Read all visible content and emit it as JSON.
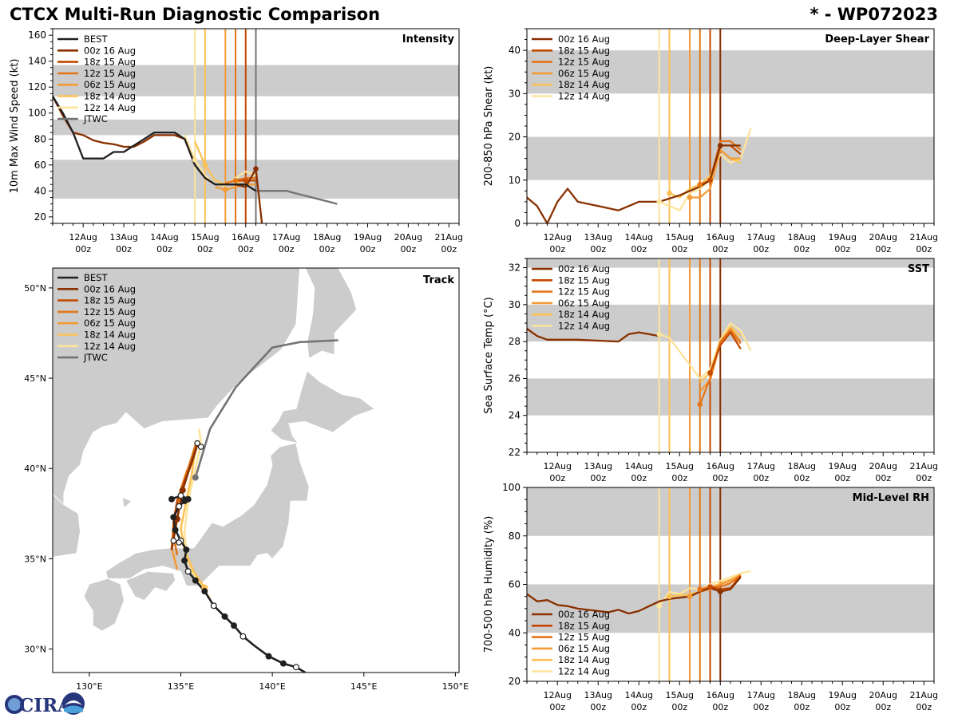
{
  "header": {
    "title": "CTCX Multi-Run Diagnostic Comparison",
    "storm": "* - WP072023"
  },
  "logo": {
    "text": "CIRA"
  },
  "colors": {
    "BEST": "#202020",
    "00z 16 Aug": "#8a3000",
    "18z 15 Aug": "#c44a00",
    "12z 15 Aug": "#e4761a",
    "06z 15 Aug": "#f49a34",
    "18z 14 Aug": "#fbc154",
    "12z 14 Aug": "#fde49c",
    "JTWC": "#737373",
    "band": "#cccccc"
  },
  "time_axis": {
    "ticks": [
      1,
      2,
      3,
      4,
      5,
      6,
      7,
      8,
      9,
      10
    ],
    "labels": [
      [
        "12Aug",
        "00z"
      ],
      [
        "13Aug",
        "00z"
      ],
      [
        "14Aug",
        "00z"
      ],
      [
        "15Aug",
        "00z"
      ],
      [
        "16Aug",
        "00z"
      ],
      [
        "17Aug",
        "00z"
      ],
      [
        "18Aug",
        "00z"
      ],
      [
        "19Aug",
        "00z"
      ],
      [
        "20Aug",
        "00z"
      ],
      [
        "21Aug",
        "00z"
      ]
    ]
  },
  "init_times": [
    {
      "name": "12z 14 Aug",
      "t": 3.5
    },
    {
      "name": "18z 14 Aug",
      "t": 3.75
    },
    {
      "name": "06z 15 Aug",
      "t": 4.25
    },
    {
      "name": "12z 15 Aug",
      "t": 4.5
    },
    {
      "name": "18z 15 Aug",
      "t": 4.75
    },
    {
      "name": "00z 16 Aug",
      "t": 5.0
    }
  ],
  "chart_data": [
    {
      "id": "intensity",
      "type": "line",
      "title": "Intensity",
      "ylabel": "10m Max Wind Speed (kt)",
      "xlim": [
        0.25,
        10.25
      ],
      "ylim": [
        15,
        165
      ],
      "yticks": [
        20,
        40,
        60,
        80,
        100,
        120,
        140,
        160
      ],
      "bands": [
        [
          34,
          64
        ],
        [
          83,
          95
        ],
        [
          113,
          137
        ]
      ],
      "legend": [
        "BEST",
        "00z 16 Aug",
        "18z 15 Aug",
        "12z 15 Aug",
        "06z 15 Aug",
        "18z 14 Aug",
        "12z 14 Aug",
        "JTWC"
      ],
      "series": [
        {
          "name": "BEST",
          "x": [
            0.25,
            0.5,
            0.75,
            1.0,
            1.25,
            1.5,
            1.75,
            2.0,
            2.25,
            2.5,
            2.75,
            3.0,
            3.25,
            3.5,
            3.75,
            4.0,
            4.25,
            4.5,
            4.75,
            5.0,
            5.25
          ],
          "y": [
            113,
            100,
            85,
            65,
            65,
            65,
            70,
            70,
            75,
            80,
            85,
            85,
            85,
            80,
            60,
            50,
            45,
            45,
            45,
            45,
            40
          ]
        },
        {
          "name": "00z 16 Aug",
          "x": [
            0.25,
            0.5,
            0.75,
            1.0,
            1.25,
            1.5,
            1.75,
            2.0,
            2.25,
            2.5,
            2.75,
            3.0,
            3.25,
            3.5,
            3.75,
            4.0,
            4.25,
            4.5,
            4.75,
            5.0,
            5.25,
            5.4
          ],
          "y": [
            113,
            98,
            85,
            83,
            79,
            77,
            76,
            74,
            74,
            78,
            83,
            83,
            83,
            80,
            60,
            50,
            45,
            45,
            45,
            43,
            57,
            15
          ]
        },
        {
          "name": "18z 15 Aug",
          "x": [
            4.75,
            5.0,
            5.25
          ],
          "y": [
            48,
            48,
            48
          ]
        },
        {
          "name": "12z 15 Aug",
          "x": [
            4.5,
            4.75,
            5.0,
            5.25
          ],
          "y": [
            46,
            48,
            50,
            50
          ]
        },
        {
          "name": "06z 15 Aug",
          "x": [
            4.25,
            4.5,
            4.75,
            5.0,
            5.25
          ],
          "y": [
            43,
            41,
            43,
            45,
            45
          ]
        },
        {
          "name": "18z 14 Aug",
          "x": [
            3.75,
            4.0,
            4.25,
            4.5,
            4.75,
            5.0,
            5.25
          ],
          "y": [
            78,
            60,
            48,
            45,
            45,
            50,
            50
          ]
        },
        {
          "name": "12z 14 Aug",
          "x": [
            3.5,
            3.75,
            4.0,
            4.25,
            4.5,
            4.75,
            5.0,
            5.25
          ],
          "y": [
            83,
            64,
            52,
            45,
            44,
            50,
            55,
            52
          ]
        },
        {
          "name": "JTWC",
          "x": [
            5.0,
            5.25,
            5.5,
            5.75,
            6.0,
            6.25,
            6.5,
            6.75,
            7.0,
            7.25
          ],
          "y": [
            45,
            40,
            40,
            40,
            40,
            38,
            36,
            34,
            32,
            30
          ]
        }
      ]
    },
    {
      "id": "shear",
      "type": "line",
      "title": "Deep-Layer Shear",
      "ylabel": "200-850 hPa Shear (kt)",
      "xlim": [
        0.25,
        10.25
      ],
      "ylim": [
        0,
        45
      ],
      "yticks": [
        0,
        10,
        20,
        30,
        40
      ],
      "bands": [
        [
          10,
          20
        ],
        [
          30,
          40
        ]
      ],
      "legend": [
        "00z 16 Aug",
        "18z 15 Aug",
        "12z 15 Aug",
        "06z 15 Aug",
        "18z 14 Aug",
        "12z 14 Aug"
      ],
      "series": [
        {
          "name": "00z 16 Aug",
          "x": [
            0.25,
            0.5,
            0.75,
            1.0,
            1.25,
            1.5,
            2.0,
            2.5,
            3.0,
            3.25,
            3.5,
            4.0,
            4.25,
            4.5,
            4.75,
            5.0,
            5.25,
            5.5
          ],
          "y": [
            6,
            4,
            0,
            5,
            8,
            5,
            4,
            3,
            5,
            5,
            5,
            6.5,
            7.5,
            8.5,
            10,
            18,
            18,
            18
          ]
        },
        {
          "name": "18z 15 Aug",
          "x": [
            4.75,
            5.0,
            5.25,
            5.5
          ],
          "y": [
            10,
            18,
            18,
            16
          ]
        },
        {
          "name": "12z 15 Aug",
          "x": [
            4.5,
            4.75,
            5.0,
            5.25,
            5.5
          ],
          "y": [
            9,
            10,
            19,
            19,
            17
          ]
        },
        {
          "name": "06z 15 Aug",
          "x": [
            4.25,
            4.5,
            4.75,
            5.0,
            5.25,
            5.5
          ],
          "y": [
            6,
            6,
            8,
            17,
            15,
            15
          ]
        },
        {
          "name": "18z 14 Aug",
          "x": [
            3.75,
            4.0,
            4.25,
            4.5,
            4.75,
            5.0,
            5.25,
            5.5
          ],
          "y": [
            7,
            6,
            8,
            9,
            11,
            17,
            15,
            14
          ]
        },
        {
          "name": "12z 14 Aug",
          "x": [
            3.5,
            3.75,
            4.0,
            4.25,
            4.5,
            4.75,
            5.0,
            5.25,
            5.5,
            5.75
          ],
          "y": [
            5,
            4,
            3,
            7,
            8,
            10,
            16,
            14,
            15,
            22
          ]
        }
      ]
    },
    {
      "id": "sst",
      "type": "line",
      "title": "SST",
      "ylabel": "Sea Surface Temp (°C)",
      "xlim": [
        0.25,
        10.25
      ],
      "ylim": [
        22,
        32.5
      ],
      "yticks": [
        22,
        24,
        26,
        28,
        30,
        32
      ],
      "bands": [
        [
          24,
          26
        ],
        [
          28,
          30
        ],
        [
          32,
          32.5
        ]
      ],
      "legend": [
        "00z 16 Aug",
        "18z 15 Aug",
        "12z 15 Aug",
        "06z 15 Aug",
        "18z 14 Aug",
        "12z 14 Aug"
      ],
      "series": [
        {
          "name": "00z 16 Aug",
          "x": [
            0.25,
            0.5,
            0.75,
            1.0,
            1.5,
            2.0,
            2.5,
            2.75,
            3.0,
            3.25,
            3.5
          ],
          "y": [
            28.7,
            28.3,
            28.1,
            28.1,
            28.1,
            28.05,
            28.0,
            28.4,
            28.5,
            28.4,
            28.3
          ]
        },
        {
          "name": "18z 15 Aug",
          "x": [
            4.75,
            5.0,
            5.25,
            5.5
          ],
          "y": [
            26.3,
            27.8,
            28.5,
            27.6
          ]
        },
        {
          "name": "12z 15 Aug",
          "x": [
            4.5,
            4.75,
            5.0,
            5.25,
            5.5
          ],
          "y": [
            24.6,
            26.0,
            28.0,
            28.6,
            27.9
          ]
        },
        {
          "name": "06z 15 Aug",
          "x": [
            4.5,
            4.75,
            5.0,
            5.25,
            5.5
          ],
          "y": [
            25.3,
            25.9,
            27.9,
            28.7,
            28.0
          ]
        },
        {
          "name": "18z 14 Aug",
          "x": [
            4.5,
            4.75,
            5.0,
            5.25,
            5.5
          ],
          "y": [
            25.8,
            26.3,
            28.0,
            28.8,
            28.3
          ]
        },
        {
          "name": "12z 14 Aug",
          "x": [
            3.5,
            3.75,
            4.5,
            4.75,
            5.0,
            5.25,
            5.5,
            5.75
          ],
          "y": [
            28.4,
            28.2,
            26.0,
            26.5,
            28.1,
            29.0,
            28.6,
            27.5
          ]
        }
      ]
    },
    {
      "id": "rh",
      "type": "line",
      "title": "Mid-Level RH",
      "ylabel": "700-500 hPa Humidity (%)",
      "xlim": [
        0.25,
        10.25
      ],
      "ylim": [
        20,
        100
      ],
      "yticks": [
        20,
        40,
        60,
        80,
        100
      ],
      "bands": [
        [
          40,
          60
        ],
        [
          80,
          100
        ]
      ],
      "legend": [
        "00z 16 Aug",
        "18z 15 Aug",
        "12z 15 Aug",
        "06z 15 Aug",
        "18z 14 Aug",
        "12z 14 Aug"
      ],
      "series": [
        {
          "name": "00z 16 Aug",
          "x": [
            0.25,
            0.5,
            0.75,
            1.0,
            1.25,
            1.5,
            1.75,
            2.0,
            2.25,
            2.5,
            2.75,
            3.0,
            3.25,
            3.5,
            3.75,
            4.0,
            4.25,
            4.5,
            4.75,
            5.0,
            5.25,
            5.5
          ],
          "y": [
            56,
            53,
            53.5,
            51.5,
            51,
            50,
            49.5,
            49,
            48.5,
            49.5,
            48,
            49,
            51,
            53,
            54,
            54.5,
            55,
            57,
            58.5,
            57,
            58,
            63
          ]
        },
        {
          "name": "18z 15 Aug",
          "x": [
            4.75,
            5.0,
            5.25,
            5.5
          ],
          "y": [
            59,
            58,
            58.5,
            63.5
          ]
        },
        {
          "name": "12z 15 Aug",
          "x": [
            4.5,
            4.75,
            5.0,
            5.25,
            5.5
          ],
          "y": [
            58,
            59,
            59,
            60.5,
            63.5
          ]
        },
        {
          "name": "06z 15 Aug",
          "x": [
            4.25,
            4.5,
            4.75,
            5.0,
            5.25,
            5.5
          ],
          "y": [
            55,
            57,
            58,
            60,
            61.5,
            64
          ]
        },
        {
          "name": "18z 14 Aug",
          "x": [
            3.75,
            4.0,
            4.25,
            4.5,
            4.75,
            5.0,
            5.25,
            5.5
          ],
          "y": [
            55,
            55.5,
            56,
            57,
            58.5,
            60.5,
            62,
            64
          ]
        },
        {
          "name": "12z 14 Aug",
          "x": [
            3.5,
            3.75,
            4.0,
            4.25,
            4.5,
            4.75,
            5.0,
            5.25,
            5.5,
            5.75
          ],
          "y": [
            51,
            57,
            56,
            58.5,
            58,
            60,
            61.5,
            63,
            64.5,
            65.5
          ]
        }
      ]
    },
    {
      "id": "track",
      "type": "map_track",
      "title": "Track",
      "xlim": [
        128,
        150.2
      ],
      "ylim": [
        28.7,
        51.1
      ],
      "xticks": [
        130,
        135,
        140,
        145,
        150
      ],
      "xticklabels": [
        "130°E",
        "135°E",
        "140°E",
        "145°E",
        "150°E"
      ],
      "yticks": [
        30,
        35,
        40,
        45,
        50
      ],
      "yticklabels": [
        "30°N",
        "35°N",
        "40°N",
        "45°N",
        "50°N"
      ],
      "legend": [
        "BEST",
        "00z 16 Aug",
        "18z 15 Aug",
        "12z 15 Aug",
        "06z 15 Aug",
        "18z 14 Aug",
        "12z 14 Aug",
        "JTWC"
      ],
      "series": [
        {
          "name": "JTWC",
          "lon": [
            135.8,
            136.6,
            138.0,
            140.0,
            141.5,
            143.6
          ],
          "lat": [
            39.5,
            42.2,
            44.5,
            46.7,
            47.0,
            47.1
          ],
          "dots": [
            0
          ]
        },
        {
          "name": "12z 14 Aug",
          "lon": [
            136.6,
            136.2,
            135.6,
            135.3,
            135.2,
            135.4,
            135.8,
            136.1,
            136.0
          ],
          "lat": [
            32.8,
            33.4,
            34.3,
            35.3,
            36.5,
            38.2,
            40.0,
            41.4,
            42.2
          ],
          "dots": []
        },
        {
          "name": "18z 14 Aug",
          "lon": [
            136.3,
            135.7,
            135.2,
            135.0,
            135.3,
            135.6,
            135.8
          ],
          "lat": [
            33.4,
            34.3,
            35.5,
            36.7,
            38.2,
            39.7,
            41.2
          ],
          "dots": [
            0
          ]
        },
        {
          "name": "06z 15 Aug",
          "lon": [
            134.8,
            134.5,
            134.6,
            134.9,
            135.3,
            135.8
          ],
          "lat": [
            34.4,
            35.6,
            37.0,
            38.5,
            39.8,
            40.9
          ],
          "dots": []
        },
        {
          "name": "12z 15 Aug",
          "lon": [
            134.8,
            134.6,
            134.7,
            135.0,
            135.4,
            135.8
          ],
          "lat": [
            35.2,
            36.3,
            37.5,
            38.8,
            40.0,
            41.3
          ],
          "dots": []
        },
        {
          "name": "18z 15 Aug",
          "lon": [
            134.6,
            134.6,
            134.8,
            135.2,
            135.6,
            135.9
          ],
          "lat": [
            35.9,
            37.0,
            38.2,
            39.3,
            40.3,
            41.3
          ],
          "dots": []
        },
        {
          "name": "00z 16 Aug",
          "lon": [
            134.5,
            134.8,
            135.1,
            135.5,
            135.9
          ],
          "lat": [
            35.5,
            37.2,
            38.8,
            40.1,
            41.3
          ],
          "dots": [
            1,
            2
          ]
        },
        {
          "name": "BEST",
          "lon": [
            141.8,
            141.3,
            140.6,
            139.8,
            139.0,
            138.4,
            137.9,
            137.4,
            136.8,
            136.3,
            135.8,
            135.4,
            135.2,
            135.3,
            135.0,
            134.7,
            134.6,
            134.9,
            135.2,
            135.4,
            135.0,
            134.5
          ],
          "lat": [
            28.7,
            29.0,
            29.2,
            29.6,
            30.2,
            30.7,
            31.3,
            31.8,
            32.4,
            33.2,
            33.8,
            34.3,
            34.9,
            35.5,
            36.0,
            36.6,
            37.3,
            37.9,
            38.2,
            38.3,
            38.5,
            38.3
          ],
          "dots": [
            1,
            2,
            3,
            5,
            6,
            7,
            8,
            9,
            10,
            11,
            12,
            13,
            14,
            15,
            16,
            17,
            18,
            19,
            20,
            21
          ]
        }
      ]
    }
  ]
}
